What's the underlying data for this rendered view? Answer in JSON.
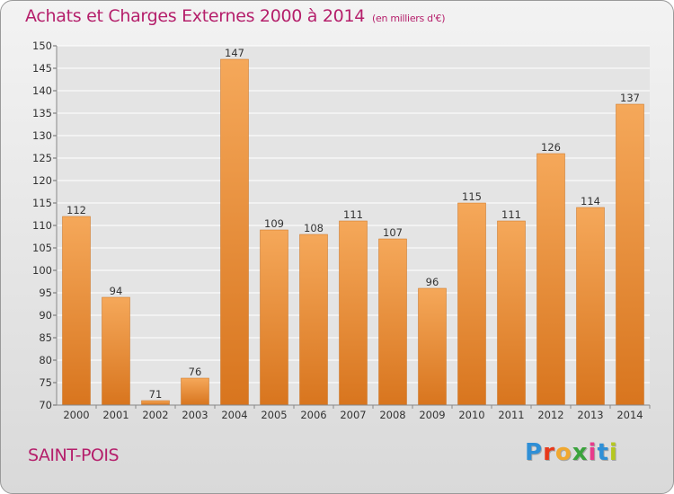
{
  "header": {
    "title": "Achats et Charges Externes 2000 à 2014",
    "subtitle": "(en milliers d'€)"
  },
  "footer": {
    "commune": "SAINT-POIS",
    "logo_letters": [
      "P",
      "r",
      "o",
      "x",
      "i",
      "t",
      "i"
    ]
  },
  "colors": {
    "title": "#b51f6b",
    "bar_light": "#f5a85a",
    "bar_dark": "#d8751e",
    "logo": [
      "#2f8fd6",
      "#e8391a",
      "#f0a830",
      "#3aa33c",
      "#e83c8c",
      "#2f8fd6",
      "#b5c820"
    ]
  },
  "chart_data": {
    "type": "bar",
    "title": "Achats et Charges Externes 2000 à 2014",
    "unit": "en milliers d'€",
    "categories": [
      "2000",
      "2001",
      "2002",
      "2003",
      "2004",
      "2005",
      "2006",
      "2007",
      "2008",
      "2009",
      "2010",
      "2011",
      "2012",
      "2013",
      "2014"
    ],
    "values": [
      112,
      94,
      71,
      76,
      147,
      109,
      108,
      111,
      107,
      96,
      115,
      111,
      126,
      114,
      137
    ],
    "ylim": [
      70,
      150
    ],
    "yticks": [
      70,
      75,
      80,
      85,
      90,
      95,
      100,
      105,
      110,
      115,
      120,
      125,
      130,
      135,
      140,
      145,
      150
    ],
    "grid": true,
    "xlabel": "",
    "ylabel": ""
  }
}
